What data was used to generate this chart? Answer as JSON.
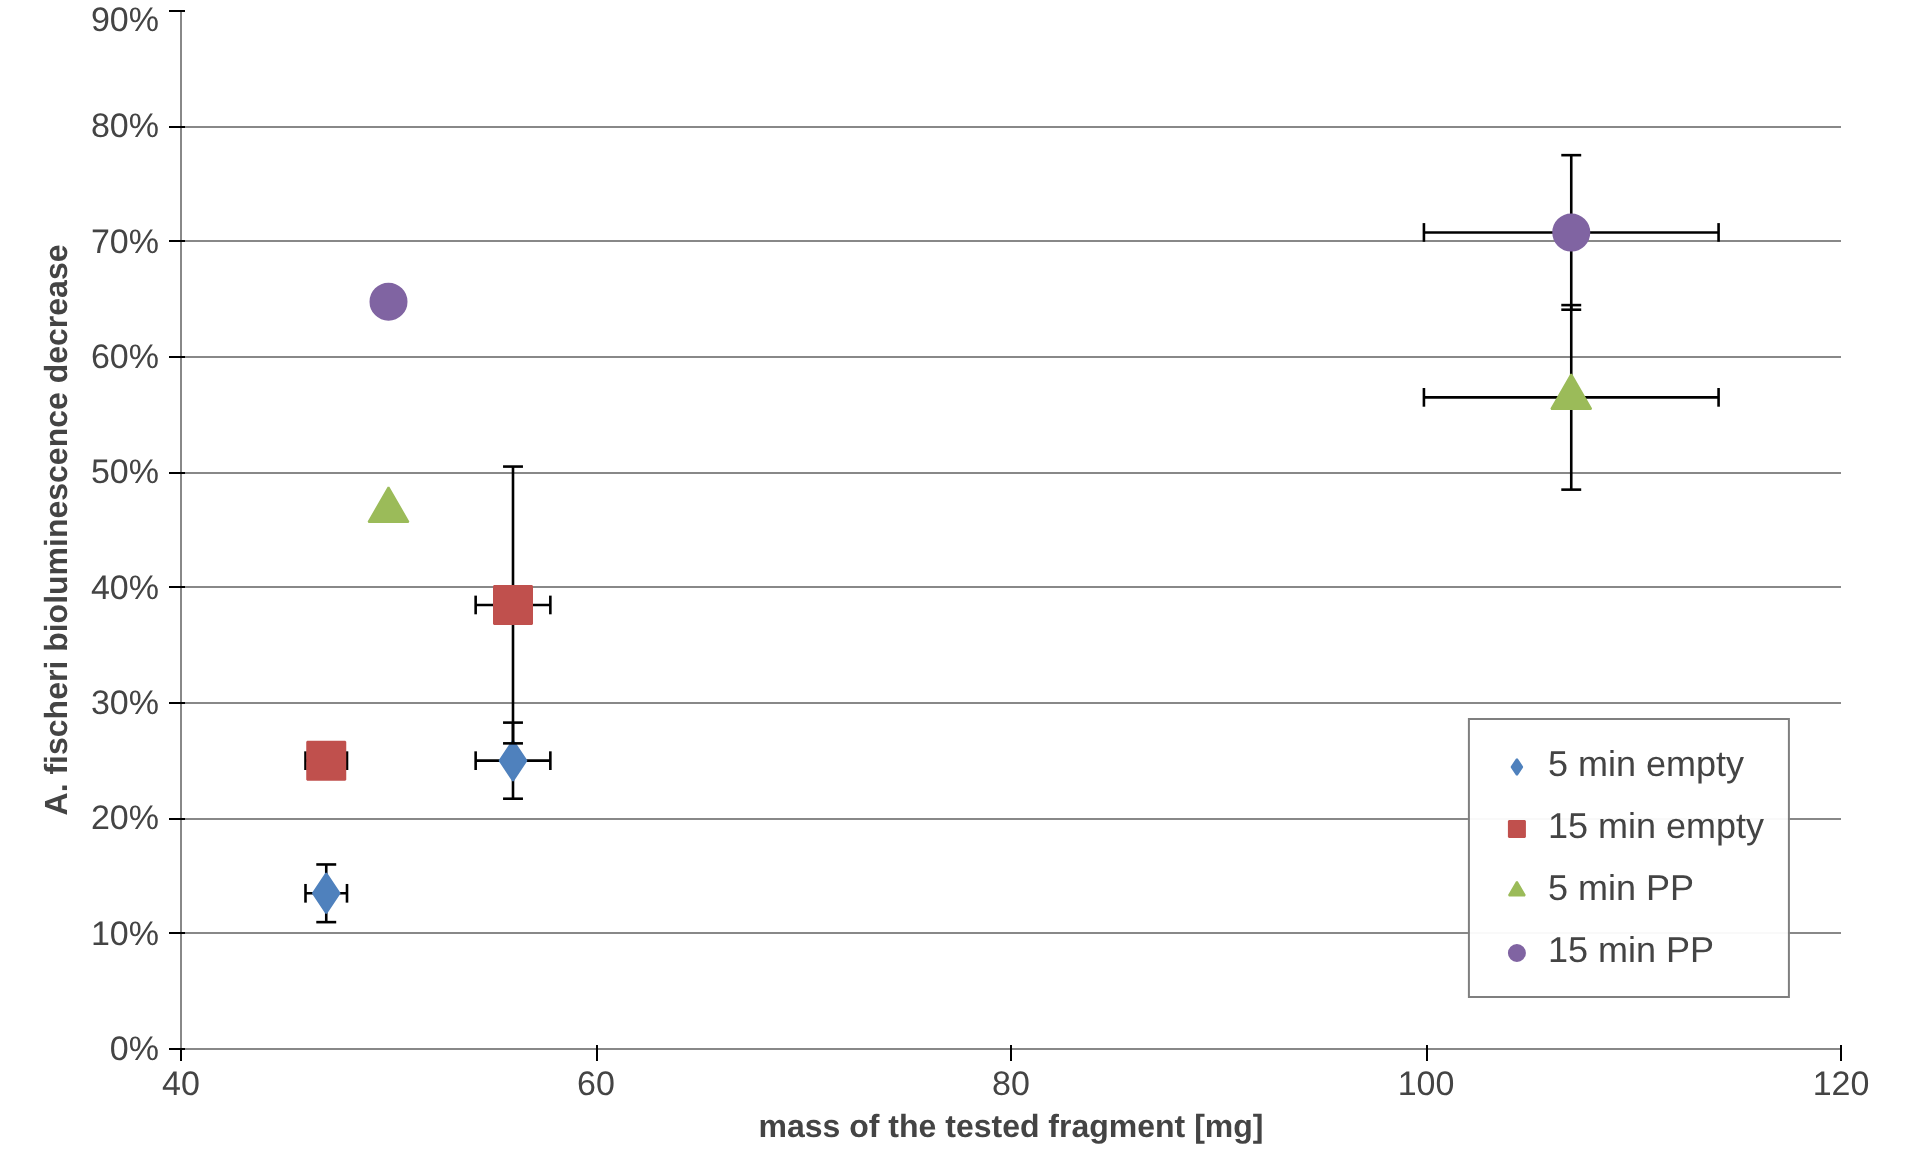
{
  "chart_data": {
    "type": "scatter",
    "xlabel": "mass of the tested fragment [mg]",
    "ylabel": "A. fischeri bioluminescence decrease",
    "xlim": [
      40,
      120
    ],
    "xticks": [
      40,
      60,
      80,
      100,
      120
    ],
    "ylim": [
      0,
      90
    ],
    "yticks": [
      {
        "value": 0,
        "label": "0%"
      },
      {
        "value": 10,
        "label": "10%"
      },
      {
        "value": 20,
        "label": "20%"
      },
      {
        "value": 30,
        "label": "30%"
      },
      {
        "value": 40,
        "label": "40%"
      },
      {
        "value": 50,
        "label": "50%"
      },
      {
        "value": 60,
        "label": "60%"
      },
      {
        "value": 70,
        "label": "70%"
      },
      {
        "value": 80,
        "label": "80%"
      },
      {
        "value": 90,
        "label": "90%"
      }
    ],
    "grid": "y",
    "legend": "bottom right",
    "series": [
      {
        "name": "5 min empty",
        "color": "#4f81bd",
        "marker": "diamond",
        "x": [
          47,
          56
        ],
        "values": [
          13.5,
          25
        ],
        "errors": [
          2.5,
          3.3
        ],
        "xerrors": [
          1,
          1.8
        ]
      },
      {
        "name": "15 min empty",
        "color": "#c0504d",
        "marker": "square",
        "x": [
          47,
          56
        ],
        "values": [
          25,
          38.5
        ],
        "errors": [
          null,
          12
        ],
        "xerrors": [
          1,
          1.8
        ]
      },
      {
        "name": "5 min PP",
        "color": "#9bbb59",
        "marker": "triangle",
        "x": [
          50,
          107
        ],
        "values": [
          46.7,
          56.5
        ],
        "errors": [
          null,
          8
        ],
        "xerrors": [
          null,
          7.1
        ]
      },
      {
        "name": "15 min PP",
        "color": "#8064a2",
        "marker": "circle",
        "x": [
          50,
          107
        ],
        "values": [
          64.8,
          70.8
        ],
        "errors": [
          null,
          6.7
        ],
        "xerrors": [
          null,
          7.1
        ]
      }
    ]
  }
}
